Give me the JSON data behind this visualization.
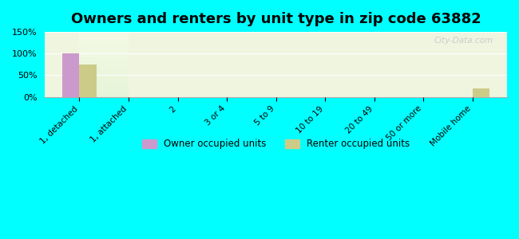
{
  "title": "Owners and renters by unit type in zip code 63882",
  "categories": [
    "1, detached",
    "1, attached",
    "2",
    "3 or 4",
    "5 to 9",
    "10 to 19",
    "20 to 49",
    "50 or more",
    "Mobile home"
  ],
  "owner_values": [
    100,
    0,
    0,
    0,
    0,
    0,
    0,
    0,
    0
  ],
  "renter_values": [
    75,
    0,
    0,
    0,
    0,
    0,
    0,
    0,
    20
  ],
  "owner_color": "#cc99cc",
  "renter_color": "#cccc88",
  "bg_color": "#00ffff",
  "plot_bg_top": "#f5f5e8",
  "plot_bg_bottom": "#e8f5e8",
  "ylim": [
    0,
    150
  ],
  "yticks": [
    0,
    50,
    100,
    150
  ],
  "ytick_labels": [
    "0%",
    "50%",
    "100%",
    "150%"
  ],
  "bar_width": 0.35,
  "title_fontsize": 13,
  "watermark": "City-Data.com",
  "legend_owner": "Owner occupied units",
  "legend_renter": "Renter occupied units"
}
